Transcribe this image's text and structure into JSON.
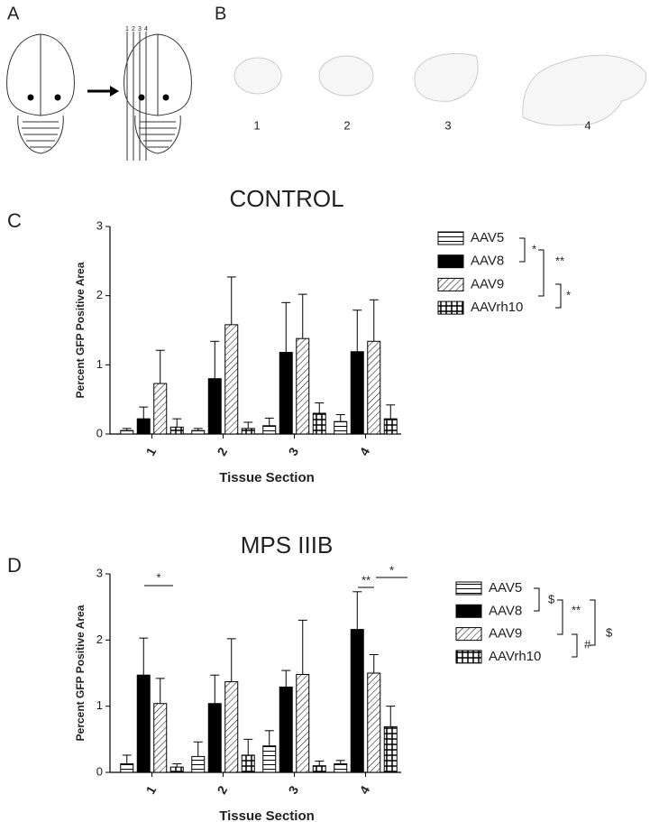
{
  "panels": {
    "A": {
      "label": "A",
      "line_labels": [
        "1",
        "2",
        "3",
        "4"
      ]
    },
    "B": {
      "label": "B",
      "section_labels": [
        "1",
        "2",
        "3",
        "4"
      ]
    }
  },
  "chart_data": [
    {
      "type": "bar",
      "panel_label": "C",
      "title": "CONTROL",
      "x_label": "Tissue Section",
      "y_label": "Percent GFP Positive Area",
      "categories": [
        "1",
        "2",
        "3",
        "4"
      ],
      "ylim": [
        0,
        3
      ],
      "yticks": [
        0,
        1,
        2,
        3
      ],
      "series": [
        {
          "name": "AAV5",
          "color": "#000000",
          "pattern": "horizontal",
          "values": [
            0.05,
            0.05,
            0.12,
            0.18
          ],
          "errors": [
            0.03,
            0.03,
            0.11,
            0.1
          ]
        },
        {
          "name": "AAV8",
          "color": "#000000",
          "pattern": "solid",
          "values": [
            0.22,
            0.8,
            1.18,
            1.19
          ],
          "errors": [
            0.17,
            0.54,
            0.72,
            0.6
          ]
        },
        {
          "name": "AAV9",
          "color": "#000000",
          "pattern": "diagonal",
          "values": [
            0.73,
            1.58,
            1.38,
            1.34
          ],
          "errors": [
            0.48,
            0.69,
            0.64,
            0.6
          ]
        },
        {
          "name": "AAVrh10",
          "color": "#000000",
          "pattern": "grid",
          "values": [
            0.1,
            0.08,
            0.3,
            0.22
          ],
          "errors": [
            0.12,
            0.09,
            0.15,
            0.2
          ]
        }
      ],
      "legend_annotations": [
        "*",
        "**",
        "*"
      ],
      "plot_annotations": []
    },
    {
      "type": "bar",
      "panel_label": "D",
      "title": "MPS IIIB",
      "x_label": "Tissue Section",
      "y_label": "Percent GFP Positive Area",
      "categories": [
        "1",
        "2",
        "3",
        "4"
      ],
      "ylim": [
        0,
        3
      ],
      "yticks": [
        0,
        1,
        2,
        3
      ],
      "series": [
        {
          "name": "AAV5",
          "color": "#000000",
          "pattern": "horizontal",
          "values": [
            0.13,
            0.24,
            0.4,
            0.13
          ],
          "errors": [
            0.13,
            0.22,
            0.23,
            0.05
          ]
        },
        {
          "name": "AAV8",
          "color": "#000000",
          "pattern": "solid",
          "values": [
            1.47,
            1.04,
            1.29,
            2.16
          ],
          "errors": [
            0.56,
            0.43,
            0.25,
            0.57
          ]
        },
        {
          "name": "AAV9",
          "color": "#000000",
          "pattern": "diagonal",
          "values": [
            1.04,
            1.37,
            1.48,
            1.5
          ],
          "errors": [
            0.38,
            0.65,
            0.82,
            0.28
          ]
        },
        {
          "name": "AAVrh10",
          "color": "#000000",
          "pattern": "grid",
          "values": [
            0.08,
            0.26,
            0.1,
            0.69
          ],
          "errors": [
            0.05,
            0.24,
            0.07,
            0.31
          ]
        }
      ],
      "legend_annotations": [
        "$",
        "**",
        "#",
        "$"
      ],
      "plot_annotations": [
        "*",
        "**",
        "*"
      ]
    }
  ]
}
